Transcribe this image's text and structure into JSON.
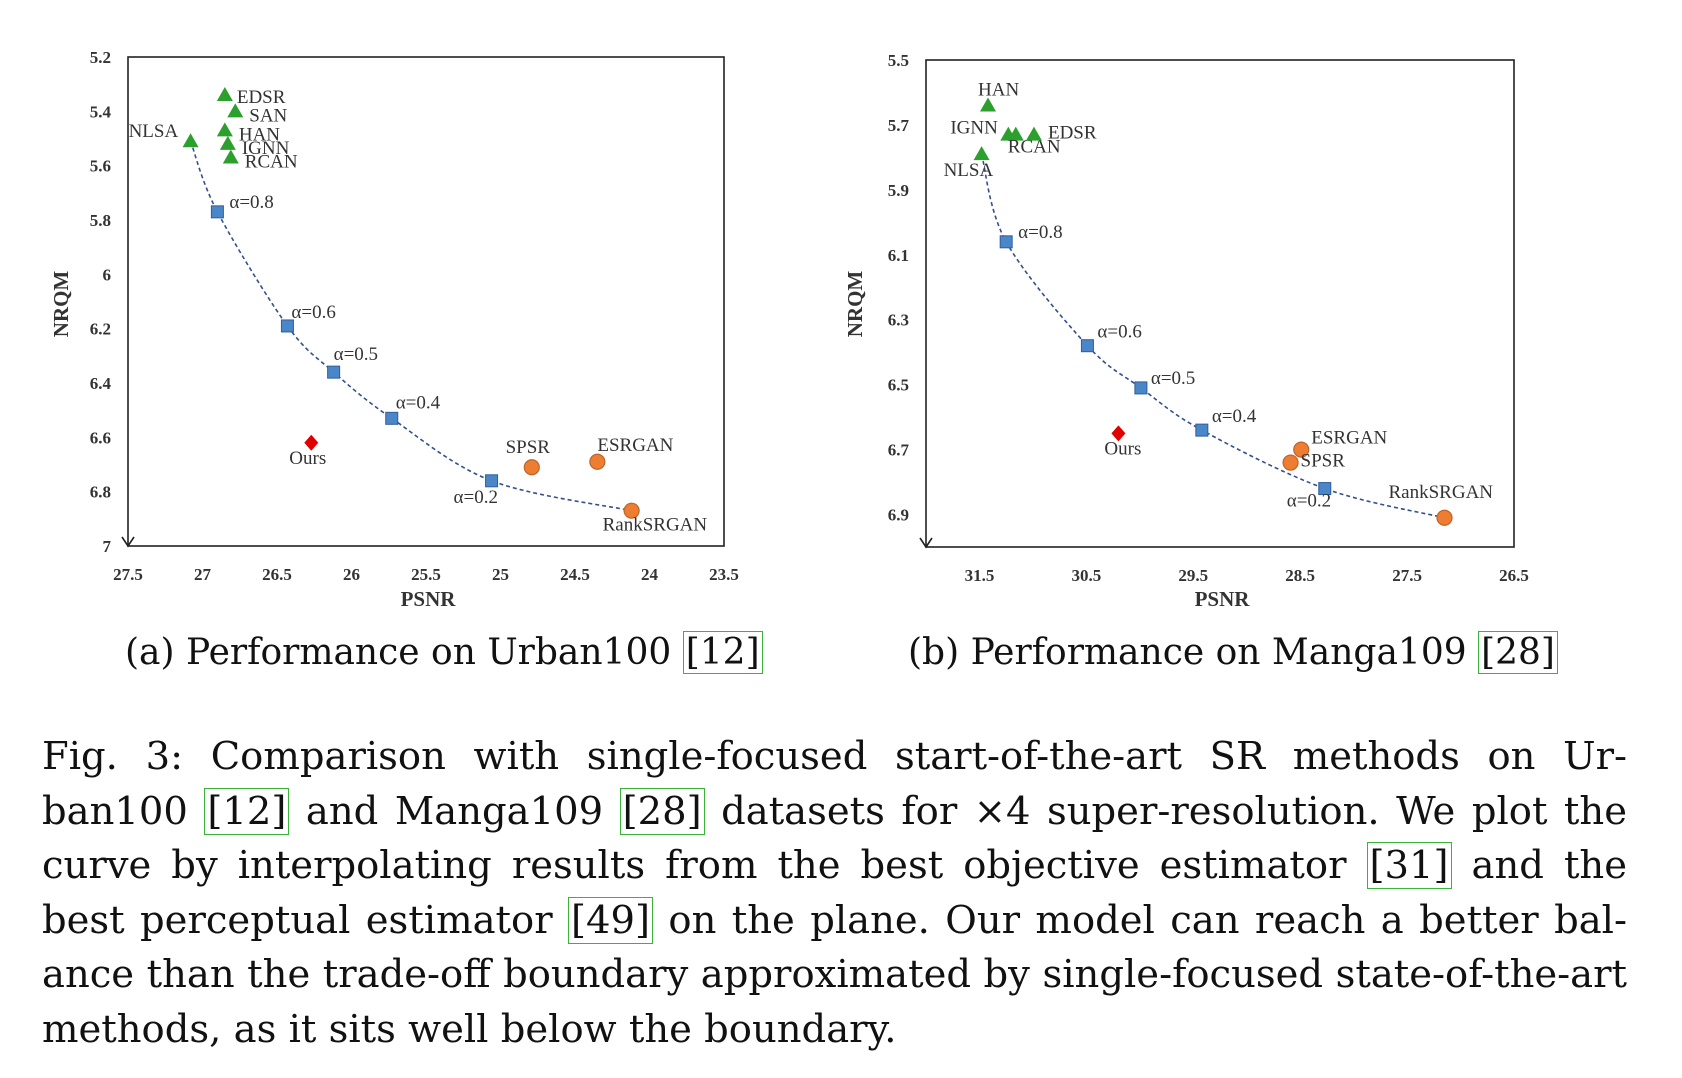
{
  "chart_data": [
    {
      "type": "scatter",
      "xlabel": "PSNR",
      "ylabel": "NRQM",
      "xlim": [
        27.5,
        23.5
      ],
      "ylim": [
        5.2,
        7.0
      ],
      "x_reversed": true,
      "y_reversed": true,
      "xticks": [
        "27.5",
        "27",
        "26.5",
        "26",
        "25.5",
        "25",
        "24.5",
        "24",
        "23.5"
      ],
      "yticks": [
        "5.2",
        "5.4",
        "5.6",
        "5.8",
        "6",
        "6.2",
        "6.4",
        "6.6",
        "6.8",
        "7"
      ],
      "series": [
        {
          "kind": "pixel-oriented",
          "marker": "triangle",
          "color": "#2ca02c",
          "points": [
            {
              "label": "EDSR",
              "x": 26.85,
              "y": 5.34
            },
            {
              "label": "SAN",
              "x": 26.78,
              "y": 5.4
            },
            {
              "label": "HAN",
              "x": 26.85,
              "y": 5.47
            },
            {
              "label": "IGNN",
              "x": 26.83,
              "y": 5.52
            },
            {
              "label": "RCAN",
              "x": 26.81,
              "y": 5.57
            },
            {
              "label": "NLSA",
              "x": 27.08,
              "y": 5.51
            }
          ]
        },
        {
          "kind": "interpolation",
          "marker": "square",
          "color": "#4a86c8",
          "points": [
            {
              "label": "α=0.8",
              "x": 26.9,
              "y": 5.77
            },
            {
              "label": "α=0.6",
              "x": 26.43,
              "y": 6.19
            },
            {
              "label": "α=0.5",
              "x": 26.12,
              "y": 6.36
            },
            {
              "label": "α=0.4",
              "x": 25.73,
              "y": 6.53
            },
            {
              "label": "α=0.2",
              "x": 25.06,
              "y": 6.76
            }
          ]
        },
        {
          "kind": "perceptual",
          "marker": "circle",
          "color": "#ed7d31",
          "points": [
            {
              "label": "SPSR",
              "x": 24.79,
              "y": 6.71
            },
            {
              "label": "ESRGAN",
              "x": 24.35,
              "y": 6.69
            },
            {
              "label": "RankSRGAN",
              "x": 24.12,
              "y": 6.87
            }
          ]
        },
        {
          "kind": "ours",
          "marker": "diamond",
          "color": "#e00000",
          "points": [
            {
              "label": "Ours",
              "x": 26.27,
              "y": 6.62
            }
          ]
        }
      ]
    },
    {
      "type": "scatter",
      "xlabel": "PSNR",
      "ylabel": "NRQM",
      "xlim": [
        32.0,
        26.5
      ],
      "ylim": [
        5.5,
        7.0
      ],
      "x_reversed": true,
      "y_reversed": true,
      "xticks": [
        "31.5",
        "30.5",
        "29.5",
        "28.5",
        "27.5",
        "26.5"
      ],
      "yticks": [
        "5.5",
        "5.7",
        "5.9",
        "6.1",
        "6.3",
        "6.5",
        "6.7",
        "6.9"
      ],
      "series": [
        {
          "kind": "pixel-oriented",
          "marker": "triangle",
          "color": "#2ca02c",
          "points": [
            {
              "label": "HAN",
              "x": 31.42,
              "y": 5.64
            },
            {
              "label": "IGNN",
              "x": 31.23,
              "y": 5.73
            },
            {
              "label": "RCAN",
              "x": 31.16,
              "y": 5.73
            },
            {
              "label": "EDSR",
              "x": 30.99,
              "y": 5.73
            },
            {
              "label": "NLSA",
              "x": 31.48,
              "y": 5.79
            }
          ]
        },
        {
          "kind": "interpolation",
          "marker": "square",
          "color": "#4a86c8",
          "points": [
            {
              "label": "α=0.8",
              "x": 31.25,
              "y": 6.06
            },
            {
              "label": "α=0.6",
              "x": 30.49,
              "y": 6.38
            },
            {
              "label": "α=0.5",
              "x": 29.99,
              "y": 6.51
            },
            {
              "label": "α=0.4",
              "x": 29.42,
              "y": 6.64
            },
            {
              "label": "α=0.2",
              "x": 28.27,
              "y": 6.82
            }
          ]
        },
        {
          "kind": "perceptual",
          "marker": "circle",
          "color": "#ed7d31",
          "points": [
            {
              "label": "ESRGAN",
              "x": 28.49,
              "y": 6.7
            },
            {
              "label": "SPSR",
              "x": 28.59,
              "y": 6.74
            },
            {
              "label": "RankSRGAN",
              "x": 27.15,
              "y": 6.91
            }
          ]
        },
        {
          "kind": "ours",
          "marker": "diamond",
          "color": "#e00000",
          "points": [
            {
              "label": "Ours",
              "x": 30.2,
              "y": 6.65
            }
          ]
        }
      ]
    }
  ],
  "subcaptions": {
    "a_text": "(a) Performance on Urban100 ",
    "a_ref": "[12]",
    "b_text": "(b) Performance on Manga109 ",
    "b_ref": "[28]"
  },
  "caption": {
    "lines": [
      [
        "Fig. 3: Comparison with single-focused start-of-the-art SR methods on Ur-"
      ],
      [
        "ban100 ",
        "[12]",
        " and Manga109 ",
        "[28]",
        " datasets for ×4 super-resolution. We plot the"
      ],
      [
        "curve by interpolating results from the best objective estimator ",
        "[31]",
        " and the"
      ],
      [
        "best perceptual estimator ",
        "[49]",
        " on the plane. Our model can reach a better bal-"
      ],
      [
        "ance than the trade-off boundary approximated by single-focused state-of-the-art"
      ],
      [
        "methods, as it sits well below the boundary."
      ]
    ]
  }
}
